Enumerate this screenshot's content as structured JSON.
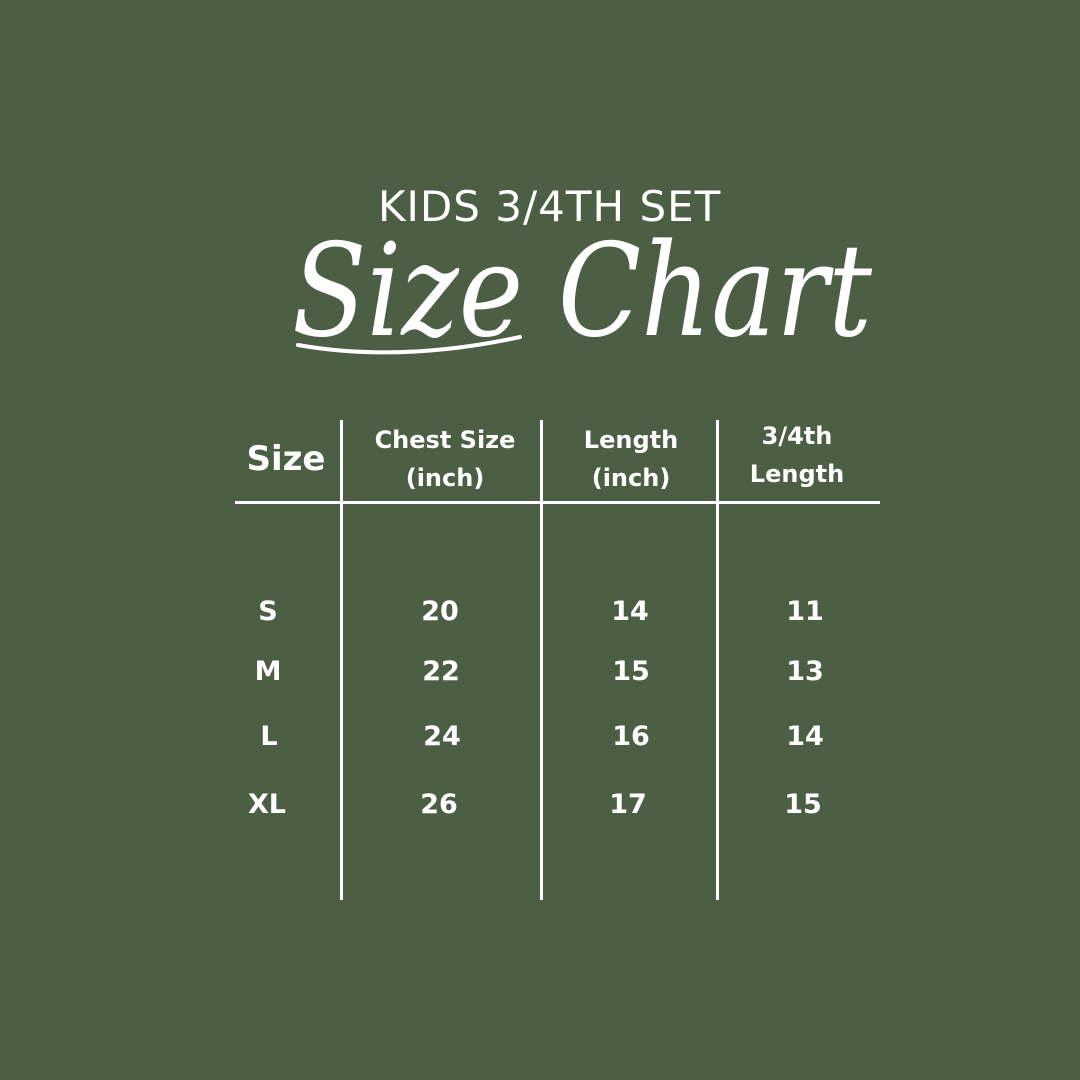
{
  "subtitle": "KIDS 3/4TH SET",
  "title": "Size Chart",
  "table": {
    "headers": {
      "size": "Size",
      "chest_line1": "Chest Size",
      "chest_line2": "(inch)",
      "length_line1": "Length",
      "length_line2": "(inch)",
      "three_fourth_line1": "3/4th",
      "three_fourth_line2": "Length"
    },
    "rows": [
      {
        "size": "S",
        "chest": "20",
        "length": "14",
        "three_fourth": "11"
      },
      {
        "size": "M",
        "chest": "22",
        "length": "15",
        "three_fourth": "13"
      },
      {
        "size": "L",
        "chest": "24",
        "length": "16",
        "three_fourth": "14"
      },
      {
        "size": "XL",
        "chest": "26",
        "length": "17",
        "three_fourth": "15"
      }
    ]
  },
  "colors": {
    "background": "#4c5f45",
    "text": "#ffffff"
  }
}
